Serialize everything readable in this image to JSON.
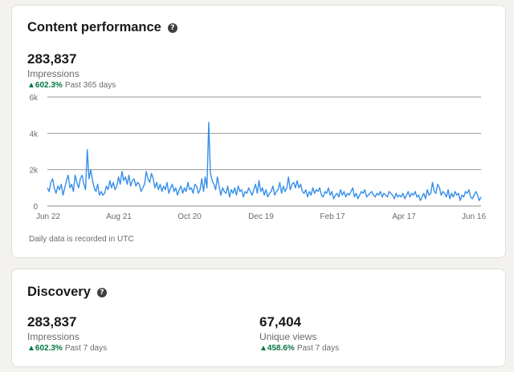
{
  "content_performance": {
    "title": "Content performance",
    "help_icon": "question-circle-icon",
    "impressions": {
      "value": "283,837",
      "label": "Impressions",
      "change": "602.3%",
      "period": "Past 365 days",
      "arrow_icon": "triangle-up-icon",
      "change_color": "#057642"
    },
    "note": "Daily data is recorded in UTC"
  },
  "discovery": {
    "title": "Discovery",
    "help_icon": "question-circle-icon",
    "impressions": {
      "value": "283,837",
      "label": "Impressions",
      "change": "602.3%",
      "period": "Past 7 days",
      "arrow_icon": "triangle-up-icon"
    },
    "unique_views": {
      "value": "67,404",
      "label": "Unique views",
      "change": "458.6%",
      "period": "Past 7 days",
      "arrow_icon": "triangle-up-icon"
    }
  },
  "chart_data": {
    "type": "line",
    "title": "",
    "xlabel": "",
    "ylabel": "",
    "y_ticks": [
      "0",
      "2k",
      "4k",
      "6k"
    ],
    "ylim": [
      0,
      6000
    ],
    "x_ticks": [
      "Jun 22",
      "Aug 21",
      "Oct 20",
      "Dec 19",
      "Feb 17",
      "Apr 17",
      "Jun 16"
    ],
    "line_color": "#378fe9",
    "gridlines": true,
    "series": [
      {
        "values": [
          1000,
          800,
          1300,
          1500,
          1000,
          700,
          1100,
          900,
          1200,
          600,
          1000,
          1400,
          1700,
          1000,
          1200,
          800,
          1700,
          1300,
          1000,
          1500,
          1700,
          1200,
          900,
          3100,
          1500,
          2000,
          1400,
          1000,
          800,
          1200,
          600,
          800,
          600,
          700,
          1100,
          900,
          1400,
          1000,
          1300,
          900,
          1100,
          1600,
          1200,
          1900,
          1400,
          1600,
          1200,
          1700,
          1100,
          1400,
          1500,
          1100,
          1300,
          1200,
          800,
          1000,
          1200,
          1900,
          1500,
          1300,
          1800,
          1500,
          1000,
          1300,
          900,
          1200,
          800,
          1100,
          900,
          1300,
          700,
          1000,
          1200,
          800,
          1000,
          600,
          900,
          1100,
          700,
          1000,
          800,
          1300,
          900,
          1000,
          700,
          1200,
          1100,
          700,
          900,
          1500,
          800,
          1600,
          1000,
          4600,
          1800,
          1400,
          1200,
          900,
          1600,
          1100,
          600,
          1000,
          800,
          700,
          1100,
          500,
          900,
          700,
          1000,
          600,
          1100,
          800,
          900,
          500,
          800,
          700,
          1000,
          800,
          600,
          900,
          1200,
          700,
          1400,
          800,
          1000,
          600,
          900,
          500,
          700,
          800,
          1100,
          600,
          800,
          900,
          1300,
          700,
          1100,
          800,
          1000,
          1600,
          900,
          1200,
          1300,
          1000,
          1400,
          1000,
          1200,
          800,
          700,
          900,
          500,
          800,
          600,
          1000,
          700,
          900,
          800,
          1000,
          600,
          500,
          800,
          700,
          1000,
          600,
          800,
          400,
          600,
          700,
          500,
          900,
          600,
          800,
          500,
          700,
          600,
          800,
          1000,
          500,
          700,
          400,
          600,
          800,
          700,
          900,
          500,
          600,
          700,
          800,
          600,
          500,
          700,
          600,
          800,
          500,
          700,
          600,
          500,
          800,
          700,
          600,
          400,
          700,
          500,
          600,
          500,
          700,
          400,
          600,
          800,
          500,
          700,
          600,
          800,
          500,
          600,
          300,
          500,
          700,
          400,
          900,
          600,
          700,
          1300,
          800,
          700,
          1200,
          1000,
          600,
          800,
          700,
          500,
          900,
          400,
          700,
          500,
          800,
          600,
          700,
          300,
          600,
          500,
          800,
          700,
          900,
          500,
          400,
          600,
          800,
          600,
          300,
          500
        ]
      }
    ]
  }
}
